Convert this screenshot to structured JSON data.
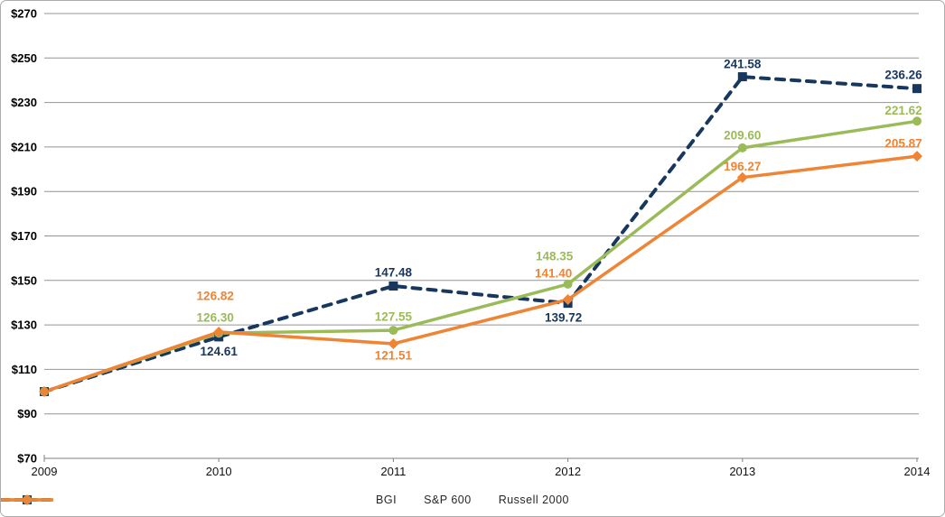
{
  "chart_data": {
    "type": "line",
    "title": "",
    "xlabel": "",
    "ylabel": "",
    "x_categories": [
      "2009",
      "2010",
      "2011",
      "2012",
      "2013",
      "2014"
    ],
    "ylim": [
      70,
      270
    ],
    "ytick_values": [
      70,
      90,
      110,
      130,
      150,
      170,
      190,
      210,
      230,
      250,
      270
    ],
    "ytick_labels": [
      "$70",
      "$90",
      "$110",
      "$130",
      "$150",
      "$170",
      "$190",
      "$210",
      "$230",
      "$250",
      "$270"
    ],
    "grid": "horizontal-on",
    "legend_position": "bottom-center",
    "gridline_color": "#949494",
    "axis_color": "#7f7f7f",
    "series": [
      {
        "name": "BGI",
        "color": "#17375E",
        "line_style": "dashed",
        "marker": "square",
        "values": [
          100,
          124.61,
          147.48,
          139.72,
          241.58,
          236.26
        ],
        "point_labels": [
          "",
          "124.61",
          "147.48",
          "139.72",
          "241.58",
          "236.26"
        ]
      },
      {
        "name": "S&P 600",
        "color": "#9BBB59",
        "line_style": "solid",
        "marker": "circle",
        "values": [
          100,
          126.3,
          127.55,
          148.35,
          209.6,
          221.62
        ],
        "point_labels": [
          "",
          "126.30",
          "127.55",
          "148.35",
          "209.60",
          "221.62"
        ]
      },
      {
        "name": "Russell 2000",
        "color": "#EE8434",
        "line_style": "solid",
        "marker": "diamond",
        "values": [
          100,
          126.82,
          121.51,
          141.4,
          196.27,
          205.87
        ],
        "point_labels": [
          "",
          "126.82",
          "121.51",
          "141.40",
          "196.27",
          "205.87"
        ]
      }
    ]
  }
}
